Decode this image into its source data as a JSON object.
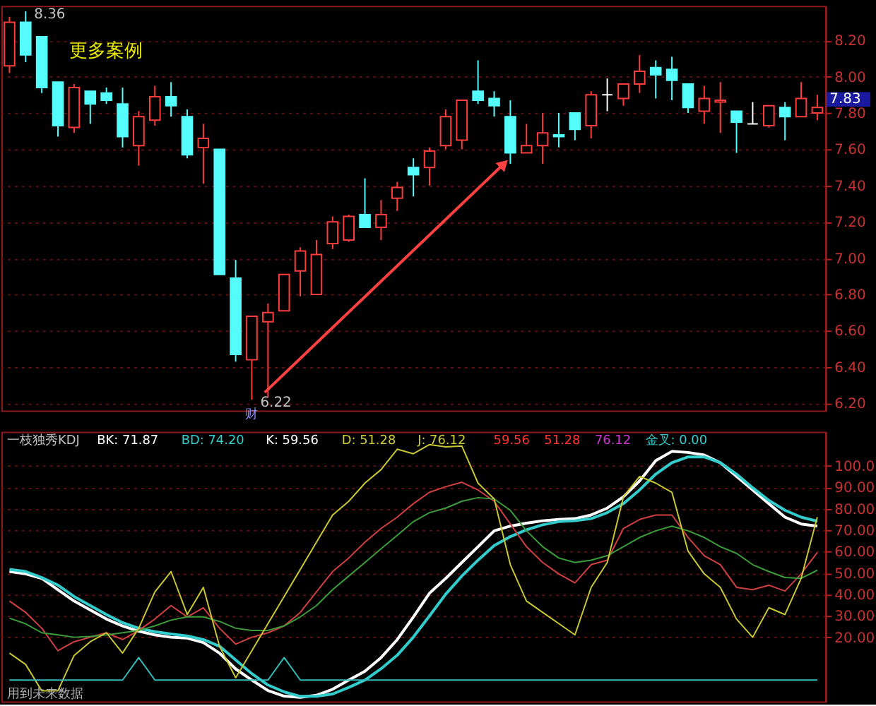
{
  "chart_data": [
    {
      "type": "candlestick",
      "categories": [
        null,
        null,
        null,
        null,
        null,
        null,
        null,
        null,
        null,
        null,
        null,
        null,
        null,
        null,
        null,
        null,
        null,
        null,
        null,
        null,
        null,
        null,
        null,
        null,
        null,
        null,
        null,
        null,
        null,
        null,
        null,
        null,
        null,
        null,
        null,
        null,
        null,
        null,
        null,
        null,
        null,
        null,
        null,
        null,
        null,
        null,
        null,
        null,
        null,
        null,
        null
      ],
      "ohlc": [
        [
          8.06,
          8.33,
          8.02,
          8.3
        ],
        [
          8.3,
          8.36,
          8.08,
          8.12
        ],
        [
          8.22,
          8.22,
          7.91,
          7.94
        ],
        [
          7.97,
          7.97,
          7.67,
          7.73
        ],
        [
          7.72,
          7.96,
          7.69,
          7.94
        ],
        [
          7.92,
          7.92,
          7.74,
          7.85
        ],
        [
          7.91,
          7.94,
          7.85,
          7.87
        ],
        [
          7.85,
          7.94,
          7.61,
          7.67
        ],
        [
          7.62,
          7.81,
          7.51,
          7.78
        ],
        [
          7.76,
          7.95,
          7.73,
          7.89
        ],
        [
          7.89,
          7.97,
          7.78,
          7.84
        ],
        [
          7.78,
          7.82,
          7.55,
          7.57
        ],
        [
          7.61,
          7.74,
          7.41,
          7.66
        ],
        [
          7.6,
          7.6,
          6.91,
          6.91
        ],
        [
          6.89,
          6.99,
          6.43,
          6.47
        ],
        [
          6.44,
          6.68,
          6.22,
          6.68
        ],
        [
          6.65,
          6.75,
          6.23,
          6.7
        ],
        [
          6.71,
          6.91,
          6.71,
          6.91
        ],
        [
          6.93,
          7.06,
          6.79,
          7.04
        ],
        [
          6.8,
          7.1,
          6.8,
          7.02
        ],
        [
          7.08,
          7.23,
          7.05,
          7.2
        ],
        [
          7.1,
          7.24,
          7.09,
          7.23
        ],
        [
          7.24,
          7.44,
          7.17,
          7.17
        ],
        [
          7.17,
          7.32,
          7.1,
          7.24
        ],
        [
          7.33,
          7.42,
          7.26,
          7.39
        ],
        [
          7.5,
          7.55,
          7.34,
          7.46
        ],
        [
          7.5,
          7.61,
          7.4,
          7.59
        ],
        [
          7.62,
          7.82,
          7.6,
          7.78
        ],
        [
          7.65,
          7.87,
          7.6,
          7.87
        ],
        [
          7.92,
          8.09,
          7.85,
          7.87
        ],
        [
          7.88,
          7.92,
          7.78,
          7.84
        ],
        [
          7.78,
          7.87,
          7.52,
          7.58
        ],
        [
          7.58,
          7.74,
          7.58,
          7.62
        ],
        [
          7.62,
          7.8,
          7.52,
          7.69
        ],
        [
          7.68,
          7.8,
          7.61,
          7.67
        ],
        [
          7.8,
          7.8,
          7.65,
          7.71
        ],
        [
          7.73,
          7.92,
          7.66,
          7.9
        ],
        [
          7.9,
          7.99,
          7.81,
          7.9
        ],
        [
          7.88,
          7.96,
          7.84,
          7.96
        ],
        [
          7.96,
          8.12,
          7.91,
          8.03
        ],
        [
          8.05,
          8.09,
          7.88,
          8.01
        ],
        [
          8.04,
          8.11,
          7.87,
          7.98
        ],
        [
          7.96,
          7.96,
          7.8,
          7.83
        ],
        [
          7.81,
          7.95,
          7.74,
          7.88
        ],
        [
          7.86,
          7.97,
          7.69,
          7.87
        ],
        [
          7.81,
          7.81,
          7.58,
          7.75
        ],
        [
          7.74,
          7.86,
          7.74,
          7.74
        ],
        [
          7.73,
          7.84,
          7.72,
          7.84
        ],
        [
          7.83,
          7.86,
          7.65,
          7.78
        ],
        [
          7.78,
          7.97,
          7.78,
          7.88
        ],
        [
          7.8,
          7.9,
          7.76,
          7.83
        ]
      ],
      "colors": [
        "#ff3c3c",
        "#54fcfc",
        "#54fcfc",
        "#54fcfc",
        "#ff3c3c",
        "#54fcfc",
        "#54fcfc",
        "#54fcfc",
        "#ff3c3c",
        "#ff3c3c",
        "#54fcfc",
        "#54fcfc",
        "#ff3c3c",
        "#54fcfc",
        "#54fcfc",
        "#ff3c3c",
        "#ff3c3c",
        "#ff3c3c",
        "#ff3c3c",
        "#ff3c3c",
        "#ff3c3c",
        "#ff3c3c",
        "#54fcfc",
        "#ff3c3c",
        "#ff3c3c",
        "#54fcfc",
        "#ff3c3c",
        "#ff3c3c",
        "#ff3c3c",
        "#54fcfc",
        "#54fcfc",
        "#54fcfc",
        "#ff3c3c",
        "#ff3c3c",
        "#54fcfc",
        "#54fcfc",
        "#ff3c3c",
        "#ffffff",
        "#ff3c3c",
        "#ff3c3c",
        "#54fcfc",
        "#54fcfc",
        "#54fcfc",
        "#ff3c3c",
        "#ff3c3c",
        "#54fcfc",
        "#ffffff",
        "#ff3c3c",
        "#54fcfc",
        "#ff3c3c",
        "#ff3c3c"
      ],
      "ylim": [
        6.16,
        8.39
      ],
      "yticks": [
        {
          "value": 6.2,
          "label": "6.20"
        },
        {
          "value": 6.4,
          "label": "6.40"
        },
        {
          "value": 6.6,
          "label": "6.60"
        },
        {
          "value": 6.8,
          "label": "6.80"
        },
        {
          "value": 7.0,
          "label": "7.00"
        },
        {
          "value": 7.2,
          "label": "7.20"
        },
        {
          "value": 7.4,
          "label": "7.40"
        },
        {
          "value": 7.6,
          "label": "7.60"
        },
        {
          "value": 7.8,
          "label": "7.80"
        },
        {
          "value": 8.0,
          "label": "8.00"
        },
        {
          "value": 8.2,
          "label": "8.20"
        }
      ],
      "grid": "y",
      "tick_labels": "y",
      "annotations": [
        "更多案例",
        "8.36",
        "6.22",
        "财",
        "7.83"
      ]
    },
    {
      "type": "line",
      "categories": [
        null,
        null,
        null,
        null,
        null,
        null,
        null,
        null,
        null,
        null,
        null,
        null,
        null,
        null,
        null,
        null,
        null,
        null,
        null,
        null,
        null,
        null,
        null,
        null,
        null,
        null,
        null,
        null,
        null,
        null,
        null,
        null,
        null,
        null,
        null,
        null,
        null,
        null,
        null,
        null,
        null,
        null,
        null,
        null,
        null,
        null,
        null,
        null,
        null,
        null,
        null
      ],
      "series": [
        {
          "color": "#ffffff",
          "values": [
            50.7,
            49.6,
            47.5,
            42.2,
            36.9,
            32.7,
            28.5,
            25.3,
            22.8,
            21.1,
            20.0,
            19.6,
            17.5,
            12.6,
            5.2,
            0,
            -4.9,
            -7.5,
            -8.1,
            -7.1,
            -4.3,
            0,
            4.1,
            10.5,
            18.9,
            29.5,
            40.6,
            47.5,
            54.9,
            62.3,
            69.7,
            71.9,
            73.3,
            74.4,
            75.0,
            75.4,
            77.1,
            80.3,
            85.6,
            93.0,
            102.5,
            106.8,
            106.3,
            105.1,
            101.5,
            95.1,
            88.8,
            82.4,
            76.1,
            72.9,
            71.87
          ]
        },
        {
          "color": "#33cccc",
          "values": [
            51.7,
            50.7,
            47.9,
            44.3,
            39.0,
            34.8,
            30.6,
            26.8,
            24.2,
            22.6,
            21.5,
            20.6,
            18.9,
            15.8,
            9.4,
            3.0,
            -2.3,
            -5.5,
            -7.6,
            -7.6,
            -6.5,
            -3.4,
            0,
            5.3,
            11.6,
            20.1,
            30.0,
            40.1,
            48.6,
            56.0,
            62.8,
            67.0,
            70.2,
            72.5,
            74.0,
            74.4,
            75.4,
            78.2,
            82.4,
            88.8,
            96.2,
            101.5,
            104.2,
            104.2,
            101.5,
            96.2,
            89.8,
            83.9,
            79.3,
            76.1,
            74.2
          ]
        },
        {
          "color": "#d04040",
          "values": [
            36.9,
            31.6,
            24.2,
            13.7,
            17.9,
            20.0,
            22.1,
            18.9,
            23.2,
            28.5,
            34.8,
            29.5,
            33.8,
            24.2,
            16.8,
            20.0,
            22.1,
            25.3,
            31.6,
            41.2,
            50.7,
            57.0,
            64.4,
            70.8,
            76.1,
            82.4,
            87.7,
            90.3,
            92.4,
            88.8,
            83.5,
            72.9,
            62.3,
            54.9,
            49.6,
            45.4,
            53.9,
            56.0,
            70.8,
            75.0,
            77.1,
            77.1,
            66.6,
            58.1,
            53.9,
            43.3,
            42.2,
            44.3,
            41.6,
            49.6,
            59.56
          ]
        },
        {
          "color": "#3c9c3c",
          "values": [
            28.9,
            26.3,
            22.1,
            21.1,
            20.0,
            20.4,
            21.1,
            22.1,
            23.2,
            25.3,
            28.0,
            29.5,
            29.5,
            27.4,
            24.2,
            23.2,
            23.2,
            25.3,
            29.5,
            34.8,
            42.2,
            48.6,
            54.9,
            61.3,
            67.6,
            74.0,
            78.2,
            80.3,
            83.5,
            85.2,
            84.6,
            79.3,
            69.7,
            62.3,
            57.0,
            54.9,
            56.0,
            58.1,
            62.3,
            66.6,
            69.7,
            71.9,
            69.7,
            66.6,
            62.3,
            59.2,
            53.9,
            50.7,
            47.9,
            47.5,
            51.28
          ]
        },
        {
          "color": "#c8c832",
          "values": [
            12.6,
            7.3,
            -5,
            -5,
            11.5,
            17.9,
            22.1,
            12.6,
            24.2,
            41.2,
            50.7,
            30.6,
            43.3,
            15.8,
            1.1,
            13.7,
            26.4,
            39.0,
            51.7,
            64.4,
            77.1,
            83.5,
            92.0,
            98.3,
            107.8,
            105.7,
            110.0,
            108.9,
            109.3,
            92.0,
            84.6,
            53.9,
            36.9,
            31.6,
            26.4,
            21.1,
            43.3,
            54.9,
            85.6,
            95.1,
            92.0,
            87.7,
            60.2,
            49.6,
            43.3,
            28.5,
            20.0,
            33.8,
            30.6,
            47.5,
            76.12
          ]
        },
        {
          "color": "#33bbbb",
          "values": [
            0,
            0,
            0,
            0,
            0,
            0,
            0,
            0,
            10.5,
            0,
            0,
            0,
            0,
            0,
            0,
            0,
            0,
            10.5,
            0,
            0,
            0,
            0,
            0,
            0,
            0,
            0,
            0,
            0,
            0,
            0,
            0,
            0,
            0,
            0,
            0,
            0,
            0,
            0,
            0,
            0,
            0,
            0,
            0,
            0,
            0,
            0,
            0,
            0,
            0,
            0,
            0
          ]
        }
      ],
      "ylim": [
        -10,
        116
      ],
      "yticks": [
        {
          "value": 20,
          "label": "20.00"
        },
        {
          "value": 30,
          "label": "30.00"
        },
        {
          "value": 40,
          "label": "40.00"
        },
        {
          "value": 50,
          "label": "50.00"
        },
        {
          "value": 60,
          "label": "60.00"
        },
        {
          "value": 70,
          "label": "70.00"
        },
        {
          "value": 80,
          "label": "80.00"
        },
        {
          "value": 90,
          "label": "90.00"
        },
        {
          "value": 100,
          "label": "100.0"
        }
      ],
      "grid": "y",
      "tick_labels": "y",
      "marker": "none",
      "line_style": "solid",
      "annotations": [
        "一枝独秀KDJ",
        "BK: 71.87",
        "BD: 74.20",
        "K: 59.56",
        "D: 51.28",
        "J: 76.12",
        "59.56",
        "51.28",
        "76.12",
        "金叉: 0.00",
        "用到未来数据"
      ]
    }
  ]
}
